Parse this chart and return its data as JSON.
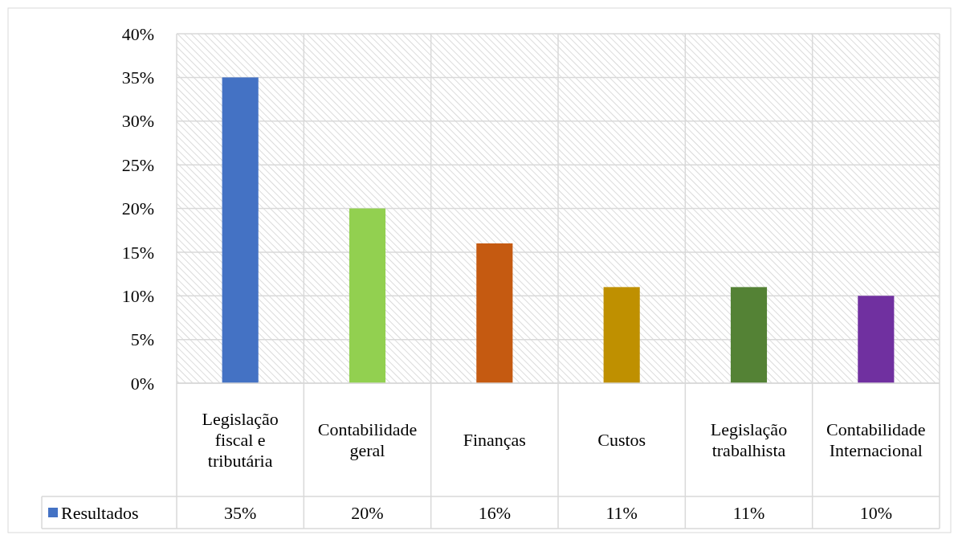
{
  "chart_data": {
    "type": "bar",
    "categories": [
      "Legislação fiscal e tributária",
      "Contabilidade geral",
      "Finanças",
      "Custos",
      "Legislação trabalhista",
      "Contabilidade Internacional"
    ],
    "series": [
      {
        "name": "Resultados",
        "color": "#4472c4",
        "colors": [
          "#4472c4",
          "#92d050",
          "#c55a11",
          "#bf9000",
          "#548235",
          "#7030a0"
        ],
        "values": [
          35,
          20,
          16,
          11,
          11,
          10
        ],
        "value_labels": [
          "35%",
          "20%",
          "16%",
          "11%",
          "11%",
          "10%"
        ]
      }
    ],
    "ylim": [
      0,
      40
    ],
    "yticks": [
      {
        "value": 0,
        "label": "0%"
      },
      {
        "value": 5,
        "label": "5%"
      },
      {
        "value": 10,
        "label": "10%"
      },
      {
        "value": 15,
        "label": "15%"
      },
      {
        "value": 20,
        "label": "20%"
      },
      {
        "value": 25,
        "label": "25%"
      },
      {
        "value": 30,
        "label": "30%"
      },
      {
        "value": 35,
        "label": "35%"
      },
      {
        "value": 40,
        "label": "40%"
      }
    ],
    "grid": true,
    "legend": "bottom"
  }
}
